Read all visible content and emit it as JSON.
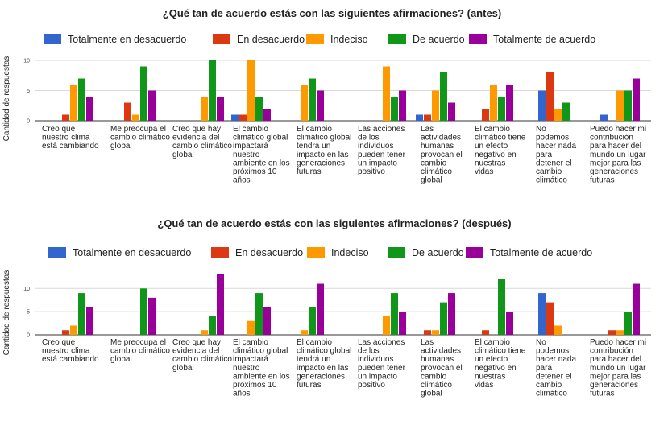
{
  "chart_data": [
    {
      "type": "bar",
      "title": "¿Qué tan de acuerdo estás con las siguientes afirmaciones? (antes)",
      "ylabel": "Cantidad de respuestas",
      "xlabel": "",
      "ylim": [
        0,
        10
      ],
      "yticks": [
        0,
        5,
        10
      ],
      "grid": true,
      "legend_position": "top",
      "categories": [
        [
          "Creo que",
          "nuestro clima",
          "está cambiando"
        ],
        [
          "Me preocupa el",
          "cambio climático",
          "global"
        ],
        [
          "Creo que hay",
          "evidencia del",
          "cambio climático",
          "global"
        ],
        [
          "El cambio",
          "climático global",
          "impactará",
          "nuestro",
          "ambiente en los",
          "próximos 10",
          "años"
        ],
        [
          "El cambio",
          "climático global",
          "tendrá un",
          "impacto en las",
          "generaciones",
          "futuras"
        ],
        [
          "Las acciones",
          "de los",
          "individuos",
          "pueden tener",
          "un impacto",
          "positivo"
        ],
        [
          "Las",
          "actividades",
          "humanas",
          "provocan el",
          "cambio",
          "climático",
          "global"
        ],
        [
          "El cambio",
          "climático tiene",
          "un efecto",
          "negativo en",
          "nuestras",
          "vidas"
        ],
        [
          "No",
          "podemos",
          "hacer nada",
          "para",
          "detener el",
          "cambio",
          "climático"
        ],
        [
          "Puedo hacer mi",
          "contribución",
          "para hacer del",
          "mundo un lugar",
          "mejor para las",
          "generaciones",
          "futuras"
        ]
      ],
      "series": [
        {
          "name": "Totalmente en desacuerdo",
          "color": "#3366cc",
          "values": [
            0,
            0,
            0,
            1,
            0,
            0,
            1,
            0,
            5,
            1
          ]
        },
        {
          "name": "En desacuerdo",
          "color": "#dc3912",
          "values": [
            1,
            3,
            0,
            1,
            0,
            0,
            1,
            2,
            8,
            0
          ]
        },
        {
          "name": "Indeciso",
          "color": "#ff9900",
          "values": [
            6,
            1,
            4,
            10,
            6,
            9,
            5,
            6,
            2,
            5
          ]
        },
        {
          "name": "De acuerdo",
          "color": "#109618",
          "values": [
            7,
            9,
            10,
            4,
            7,
            4,
            8,
            4,
            3,
            5
          ]
        },
        {
          "name": "Totalmente de acuerdo",
          "color": "#990099",
          "values": [
            4,
            5,
            4,
            2,
            5,
            5,
            3,
            6,
            0,
            7
          ]
        }
      ]
    },
    {
      "type": "bar",
      "title": "¿Qué tan de acuerdo estás con las siguientes afirmaciones? (después)",
      "ylabel": "Cantidad de respuestas",
      "xlabel": "",
      "ylim": [
        0,
        13
      ],
      "yticks": [
        0,
        5,
        10
      ],
      "grid": true,
      "legend_position": "top",
      "categories": [
        [
          "Creo que",
          "nuestro clima",
          "está cambiando"
        ],
        [
          "Me preocupa el",
          "cambio climático",
          "global"
        ],
        [
          "Creo que hay",
          "evidencia del",
          "cambio climático",
          "global"
        ],
        [
          "El cambio",
          "climático global",
          "impactará",
          "nuestro",
          "ambiente en los",
          "próximos 10",
          "años"
        ],
        [
          "El cambio",
          "climático global",
          "tendrá un",
          "impacto en las",
          "generaciones",
          "futuras"
        ],
        [
          "Las acciones",
          "de los",
          "individuos",
          "pueden tener",
          "un impacto",
          "positivo"
        ],
        [
          "Las",
          "actividades",
          "humanas",
          "provocan el",
          "cambio",
          "climático",
          "global"
        ],
        [
          "El cambio",
          "climático tiene",
          "un efecto",
          "negativo en",
          "nuestras",
          "vidas"
        ],
        [
          "No",
          "podemos",
          "hacer nada",
          "para",
          "detener el",
          "cambio",
          "climático"
        ],
        [
          "Puedo hacer mi",
          "contribución",
          "para hacer del",
          "mundo un lugar",
          "mejor para las",
          "generaciones",
          "futuras"
        ]
      ],
      "series": [
        {
          "name": "Totalmente en desacuerdo",
          "color": "#3366cc",
          "values": [
            0,
            0,
            0,
            0,
            0,
            0,
            0,
            0,
            9,
            0
          ]
        },
        {
          "name": "En desacuerdo",
          "color": "#dc3912",
          "values": [
            1,
            0,
            0,
            0,
            0,
            0,
            1,
            1,
            7,
            1
          ]
        },
        {
          "name": "Indeciso",
          "color": "#ff9900",
          "values": [
            2,
            0,
            1,
            3,
            1,
            4,
            1,
            0,
            2,
            1
          ]
        },
        {
          "name": "De acuerdo",
          "color": "#109618",
          "values": [
            9,
            10,
            4,
            9,
            6,
            9,
            7,
            12,
            0,
            5
          ]
        },
        {
          "name": "Totalmente de acuerdo",
          "color": "#990099",
          "values": [
            6,
            8,
            13,
            6,
            11,
            5,
            9,
            5,
            0,
            11
          ]
        }
      ]
    }
  ]
}
